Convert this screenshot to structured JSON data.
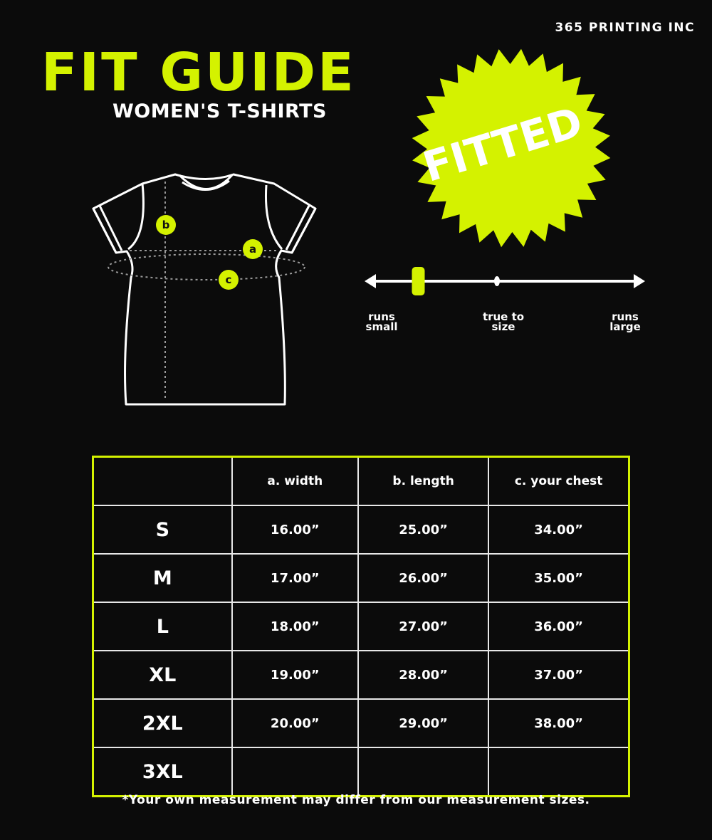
{
  "brand": "365 PRINTING INC",
  "title": "FIT GUIDE",
  "subtitle": "WOMEN'S T-SHIRTS",
  "badge": {
    "label": "FITTED"
  },
  "colors": {
    "accent": "#d4f200",
    "background": "#0b0b0b",
    "line": "#ffffff"
  },
  "diagram": {
    "markers": [
      "a",
      "b",
      "c"
    ]
  },
  "fit_scale": {
    "labels": {
      "left": [
        "runs",
        "small"
      ],
      "middle": [
        "true to",
        "size"
      ],
      "right": [
        "runs",
        "large"
      ]
    },
    "level_fraction": 0.19
  },
  "table": {
    "headers": [
      "",
      "a. width",
      "b. length",
      "c. your chest"
    ],
    "rows": [
      {
        "size": "S",
        "width": "16.00”",
        "length": "25.00”",
        "chest": "34.00”"
      },
      {
        "size": "M",
        "width": "17.00”",
        "length": "26.00”",
        "chest": "35.00”"
      },
      {
        "size": "L",
        "width": "18.00”",
        "length": "27.00”",
        "chest": "36.00”"
      },
      {
        "size": "XL",
        "width": "19.00”",
        "length": "28.00”",
        "chest": "37.00”"
      },
      {
        "size": "2XL",
        "width": "20.00”",
        "length": "29.00”",
        "chest": "38.00”"
      },
      {
        "size": "3XL",
        "width": "",
        "length": "",
        "chest": ""
      }
    ]
  },
  "footnote": "*Your own measurement may differ from our measurement sizes."
}
